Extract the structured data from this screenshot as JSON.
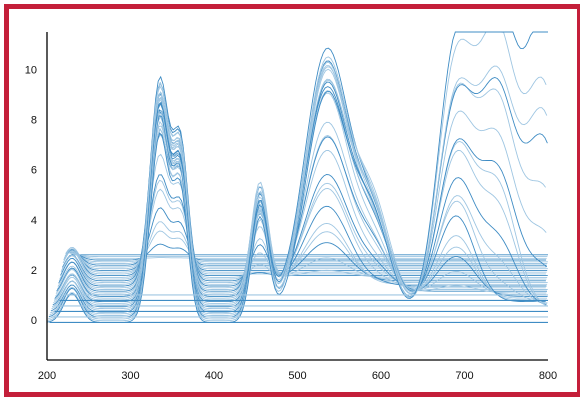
{
  "chart_data": {
    "type": "line",
    "title": "",
    "xlabel": "",
    "ylabel": "",
    "xlim": [
      200,
      800
    ],
    "ylim": [
      -1.6,
      11.5
    ],
    "x_ticks": [
      200,
      300,
      400,
      500,
      600,
      700,
      800
    ],
    "y_ticks": [
      0,
      2,
      4,
      6,
      8,
      10
    ],
    "grid": false,
    "legend": "none",
    "colors": {
      "trace": "#3f8cc4",
      "trace_light": "#9fc6e2",
      "frame": "#c41f3a",
      "axis": "#000000"
    },
    "series_count": 40,
    "peak_envelope": [
      {
        "x": 230,
        "y": 1.1
      },
      {
        "x": 335,
        "y": 7.8
      },
      {
        "x": 360,
        "y": 5.3
      },
      {
        "x": 455,
        "y": 4.2
      },
      {
        "x": 535,
        "y": 9.6
      },
      {
        "x": 590,
        "y": 3.8
      },
      {
        "x": 690,
        "y": 10.4
      },
      {
        "x": 740,
        "y": 11.6
      },
      {
        "x": 795,
        "y": 11.3
      }
    ]
  }
}
